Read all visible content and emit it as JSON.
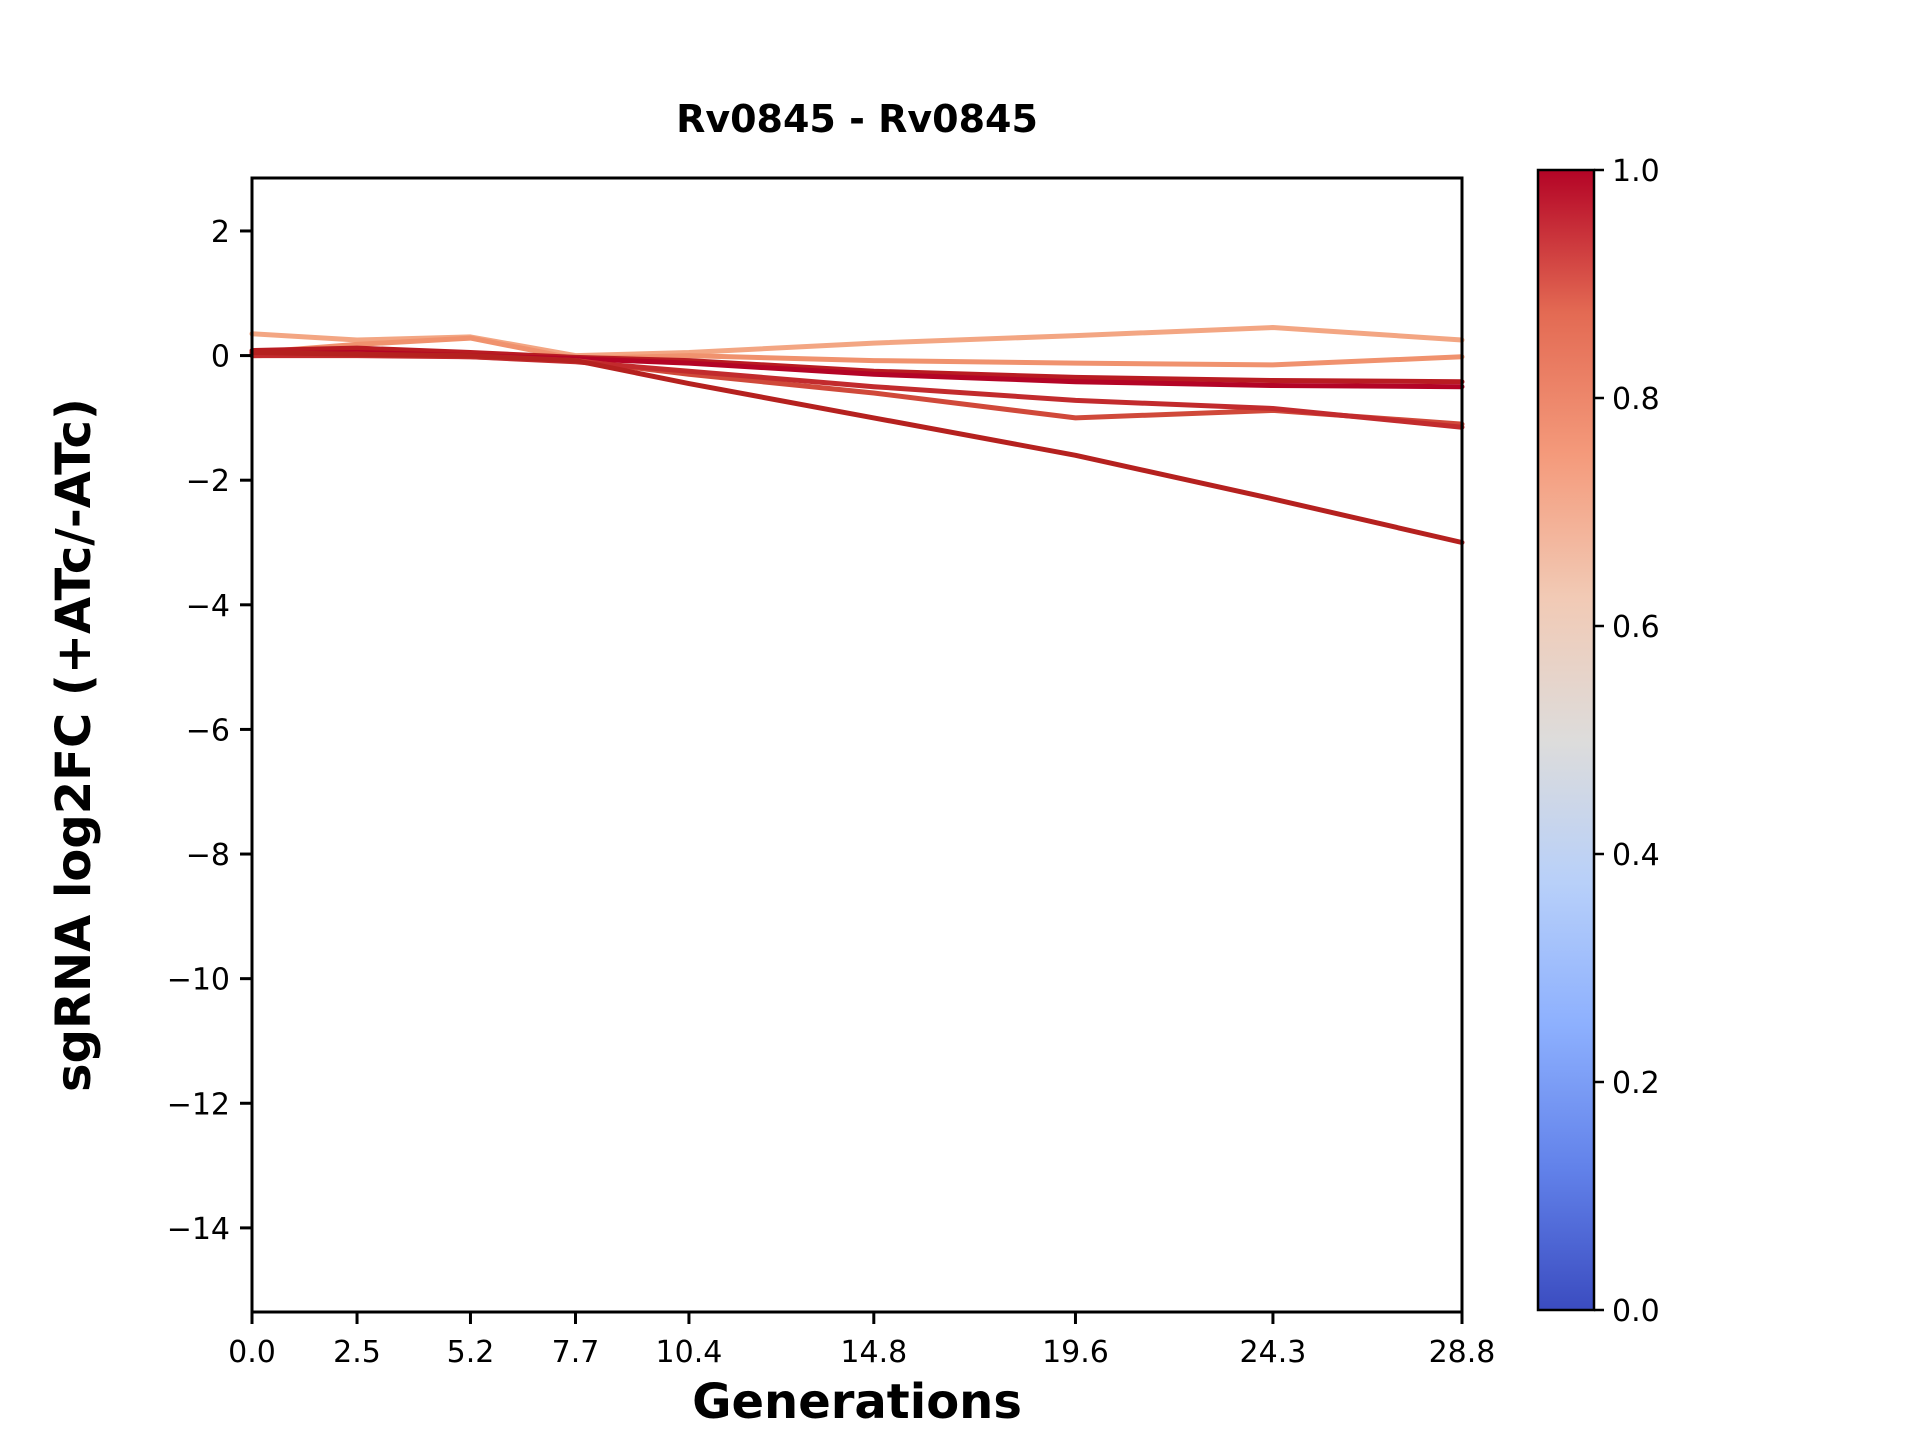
{
  "title": "Rv0845 - Rv0845",
  "chart_data": {
    "type": "line",
    "title": "Rv0845 - Rv0845",
    "xlabel": "Generations",
    "ylabel": "sgRNA log2FC (+ATc/-ATc)",
    "x": [
      0.0,
      2.5,
      5.2,
      7.7,
      10.4,
      14.8,
      19.6,
      24.3,
      28.8
    ],
    "xlim": [
      0.0,
      28.8
    ],
    "ylim": [
      -15.35,
      2.85
    ],
    "xtick_values": [
      0.0,
      2.5,
      5.2,
      7.7,
      10.4,
      14.8,
      19.6,
      24.3,
      28.8
    ],
    "xtick_labels": [
      "0.0",
      "2.5",
      "5.2",
      "7.7",
      "10.4",
      "14.8",
      "19.6",
      "24.3",
      "28.8"
    ],
    "ytick_values": [
      2,
      0,
      -2,
      -4,
      -6,
      -8,
      -10,
      -12,
      -14
    ],
    "ytick_labels": [
      "2",
      "0",
      "−2",
      "−4",
      "−6",
      "−8",
      "−10",
      "−12",
      "−14"
    ],
    "grid": false,
    "legend": "none",
    "series": [
      {
        "name": "line-1",
        "color": "#f3a683",
        "values": [
          0.35,
          0.25,
          0.3,
          0.0,
          0.05,
          0.2,
          0.32,
          0.45,
          0.25
        ]
      },
      {
        "name": "line-2",
        "color": "#f0926e",
        "values": [
          0.05,
          0.18,
          0.28,
          -0.05,
          0.0,
          -0.08,
          -0.12,
          -0.15,
          -0.02
        ]
      },
      {
        "name": "line-3",
        "color": "#b91c22",
        "values": [
          0.08,
          0.12,
          0.05,
          -0.03,
          -0.08,
          -0.25,
          -0.35,
          -0.4,
          -0.42
        ]
      },
      {
        "name": "line-4",
        "color": "#b40426",
        "values": [
          0.02,
          0.05,
          0.0,
          -0.05,
          -0.12,
          -0.3,
          -0.42,
          -0.48,
          -0.5
        ]
      },
      {
        "name": "line-5",
        "color": "#d0493a",
        "values": [
          0.0,
          0.02,
          -0.02,
          -0.08,
          -0.3,
          -0.6,
          -1.0,
          -0.88,
          -1.1
        ]
      },
      {
        "name": "line-6",
        "color": "#c22b2d",
        "values": [
          0.0,
          0.0,
          -0.02,
          -0.1,
          -0.25,
          -0.5,
          -0.72,
          -0.85,
          -1.15
        ]
      },
      {
        "name": "line-7",
        "color": "#b5211f",
        "values": [
          0.05,
          0.02,
          0.0,
          -0.08,
          -0.45,
          -1.0,
          -1.6,
          -2.3,
          -3.0
        ]
      }
    ],
    "colorbar": {
      "colormap": "coolwarm",
      "min": 0.0,
      "max": 1.0,
      "tick_values": [
        1.0,
        0.8,
        0.6,
        0.4,
        0.2,
        0.0
      ],
      "tick_labels": [
        "1.0",
        "0.8",
        "0.6",
        "0.4",
        "0.2",
        "0.0"
      ],
      "stops": [
        {
          "offset": 0.0,
          "color": "#3b4cc0"
        },
        {
          "offset": 0.125,
          "color": "#6282ea"
        },
        {
          "offset": 0.25,
          "color": "#8db0fe"
        },
        {
          "offset": 0.375,
          "color": "#b8d0f9"
        },
        {
          "offset": 0.5,
          "color": "#dddcdb"
        },
        {
          "offset": 0.625,
          "color": "#f2cab5"
        },
        {
          "offset": 0.75,
          "color": "#f49a7b"
        },
        {
          "offset": 0.875,
          "color": "#e36a53"
        },
        {
          "offset": 1.0,
          "color": "#b40426"
        }
      ]
    }
  }
}
